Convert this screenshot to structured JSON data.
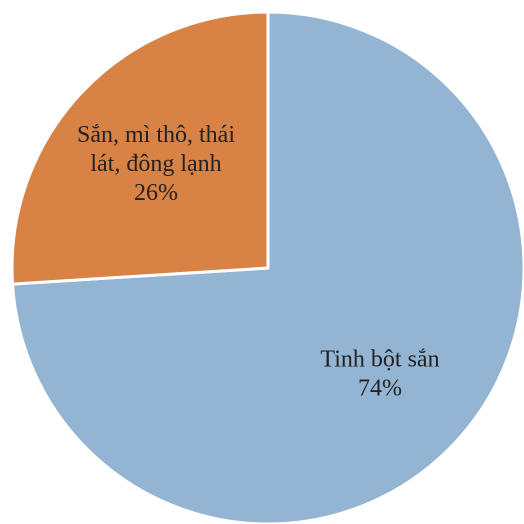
{
  "chart_data": {
    "type": "pie",
    "title": "",
    "slices": [
      {
        "label": "Tinh bột sắn",
        "value": 74,
        "value_label": "74%",
        "color": "#93b5d3"
      },
      {
        "label_lines": [
          "Sắn, mì thô, thái",
          "lát, đông lạnh"
        ],
        "value": 26,
        "value_label": "26%",
        "color": "#d98246"
      }
    ],
    "start_angle_deg": 0,
    "direction": "clockwise",
    "legend": "none"
  }
}
